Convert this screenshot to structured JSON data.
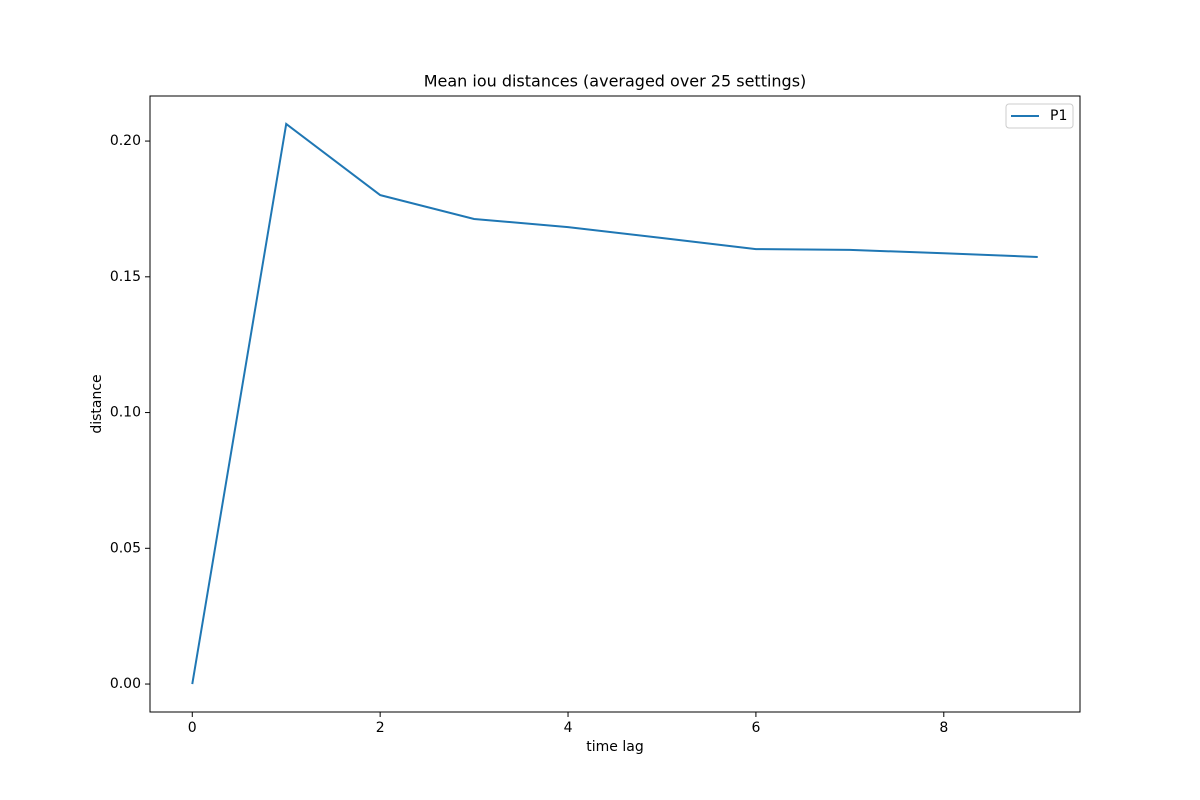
{
  "chart_data": {
    "type": "line",
    "title": "Mean iou distances (averaged over 25 settings)",
    "x_label": "time lag",
    "y_label": "distance",
    "x": [
      0,
      1,
      2,
      3,
      4,
      5,
      6,
      7,
      8,
      9
    ],
    "series": [
      {
        "name": "P1",
        "color": "#1f77b4",
        "values": [
          0.0,
          0.2063,
          0.1801,
          0.1713,
          0.1683,
          0.1643,
          0.1602,
          0.1599,
          0.1587,
          0.1573
        ]
      }
    ],
    "xlim": [
      -0.45,
      9.45
    ],
    "xticks": [
      0,
      2,
      4,
      6,
      8
    ],
    "ylim": [
      -0.0103,
      0.2166
    ],
    "yticks": [
      {
        "value": 0,
        "label": "0.00"
      },
      0.05,
      {
        "value": 0.1,
        "label": "0.10"
      },
      0.15,
      {
        "value": 0.2,
        "label": "0.20"
      }
    ],
    "grid": false,
    "legend": "upper right"
  }
}
